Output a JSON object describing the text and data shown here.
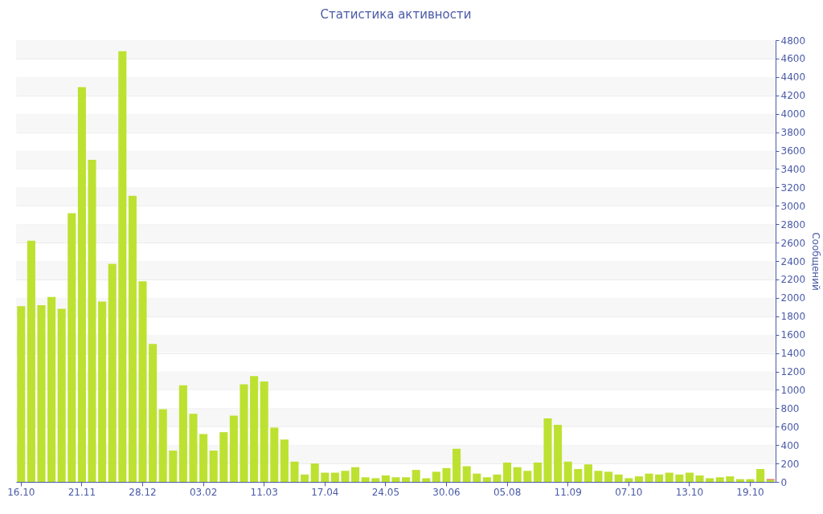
{
  "chart_data": {
    "type": "bar",
    "title": "Статистика активности",
    "ylabel": "Сообщений",
    "categories": [
      "16.10",
      null,
      null,
      null,
      null,
      null,
      "21.11",
      null,
      null,
      null,
      null,
      null,
      "28.12",
      null,
      null,
      null,
      null,
      null,
      "03.02",
      null,
      null,
      null,
      null,
      null,
      "11.03",
      null,
      null,
      null,
      null,
      null,
      "17.04",
      null,
      null,
      null,
      null,
      null,
      "24.05",
      null,
      null,
      null,
      null,
      null,
      "30.06",
      null,
      null,
      null,
      null,
      null,
      "05.08",
      null,
      null,
      null,
      null,
      null,
      "11.09",
      null,
      null,
      null,
      null,
      null,
      "07.10",
      null,
      null,
      null,
      null,
      null,
      "13.10",
      null,
      null,
      null,
      null,
      null,
      "19.10",
      null,
      null
    ],
    "stacked": true,
    "series": [
      {
        "color": "#bde131",
        "values": [
          1910,
          2620,
          1920,
          2010,
          1880,
          2920,
          4290,
          3500,
          1960,
          2370,
          4680,
          3110,
          2180,
          1500,
          790,
          340,
          1050,
          740,
          520,
          340,
          540,
          720,
          1060,
          1150,
          1090,
          590,
          460,
          220,
          80,
          200,
          100,
          100,
          120,
          160,
          50,
          40,
          70,
          50,
          50,
          130,
          40,
          110,
          150,
          360,
          170,
          90,
          50,
          80,
          210,
          160,
          120,
          210,
          690,
          620,
          220,
          140,
          190,
          120,
          110,
          80,
          40,
          60,
          90,
          80,
          100,
          80,
          100,
          70,
          40,
          50,
          60,
          30,
          30,
          140,
          20
        ]
      },
      {
        "color": "#e05a3c",
        "values": [
          null,
          null,
          null,
          null,
          null,
          null,
          null,
          null,
          null,
          null,
          null,
          null,
          null,
          null,
          null,
          null,
          null,
          null,
          null,
          null,
          null,
          null,
          null,
          null,
          null,
          null,
          null,
          null,
          null,
          null,
          null,
          null,
          null,
          null,
          null,
          null,
          null,
          null,
          null,
          null,
          null,
          null,
          null,
          null,
          null,
          null,
          null,
          null,
          null,
          null,
          null,
          null,
          null,
          null,
          null,
          null,
          null,
          null,
          null,
          null,
          null,
          null,
          null,
          null,
          null,
          null,
          null,
          null,
          null,
          null,
          null,
          null,
          null,
          null,
          10
        ]
      }
    ],
    "ylim": [
      0,
      4800
    ],
    "yticks": [
      0,
      200,
      400,
      600,
      800,
      1000,
      1200,
      1400,
      1600,
      1800,
      2000,
      2200,
      2400,
      2600,
      2800,
      3000,
      3200,
      3400,
      3600,
      3800,
      4000,
      4200,
      4400,
      4600,
      4800
    ],
    "grid": "y",
    "legend": false
  }
}
